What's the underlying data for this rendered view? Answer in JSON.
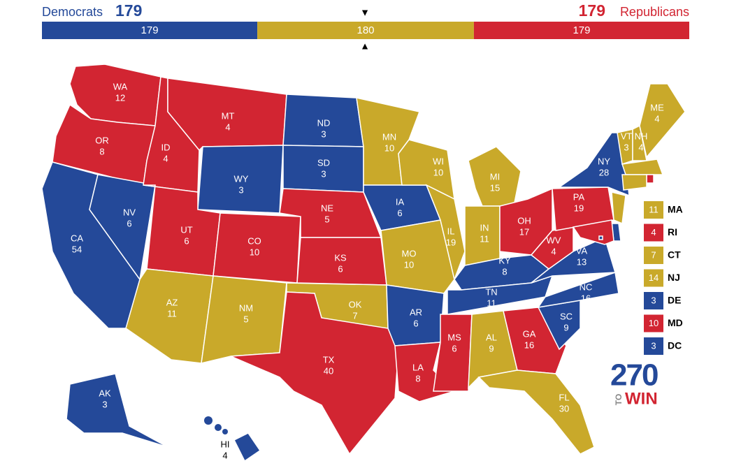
{
  "header": {
    "dem_label": "Democrats",
    "dem_total": 179,
    "rep_total": 179,
    "rep_label": "Republicans",
    "dem_color": "#244999",
    "tossup_color": "#c9a92a",
    "rep_color": "#d22532",
    "bar": [
      179,
      180,
      179
    ]
  },
  "states": [
    {
      "abbr": "WA",
      "votes": 12,
      "color": "#d22532"
    },
    {
      "abbr": "OR",
      "votes": 8,
      "color": "#d22532"
    },
    {
      "abbr": "CA",
      "votes": 54,
      "color": "#244999"
    },
    {
      "abbr": "NV",
      "votes": 6,
      "color": "#244999"
    },
    {
      "abbr": "ID",
      "votes": 4,
      "color": "#d22532"
    },
    {
      "abbr": "MT",
      "votes": 4,
      "color": "#d22532"
    },
    {
      "abbr": "WY",
      "votes": 3,
      "color": "#244999"
    },
    {
      "abbr": "UT",
      "votes": 6,
      "color": "#d22532"
    },
    {
      "abbr": "AZ",
      "votes": 11,
      "color": "#c9a92a"
    },
    {
      "abbr": "CO",
      "votes": 10,
      "color": "#d22532"
    },
    {
      "abbr": "NM",
      "votes": 5,
      "color": "#c9a92a"
    },
    {
      "abbr": "ND",
      "votes": 3,
      "color": "#244999"
    },
    {
      "abbr": "SD",
      "votes": 3,
      "color": "#244999"
    },
    {
      "abbr": "NE",
      "votes": 5,
      "color": "#d22532"
    },
    {
      "abbr": "KS",
      "votes": 6,
      "color": "#d22532"
    },
    {
      "abbr": "OK",
      "votes": 7,
      "color": "#c9a92a"
    },
    {
      "abbr": "TX",
      "votes": 40,
      "color": "#d22532"
    },
    {
      "abbr": "MN",
      "votes": 10,
      "color": "#c9a92a"
    },
    {
      "abbr": "IA",
      "votes": 6,
      "color": "#244999"
    },
    {
      "abbr": "MO",
      "votes": 10,
      "color": "#c9a92a"
    },
    {
      "abbr": "AR",
      "votes": 6,
      "color": "#244999"
    },
    {
      "abbr": "LA",
      "votes": 8,
      "color": "#d22532"
    },
    {
      "abbr": "WI",
      "votes": 10,
      "color": "#c9a92a"
    },
    {
      "abbr": "IL",
      "votes": 19,
      "color": "#c9a92a"
    },
    {
      "abbr": "MI",
      "votes": 15,
      "color": "#c9a92a"
    },
    {
      "abbr": "IN",
      "votes": 11,
      "color": "#c9a92a"
    },
    {
      "abbr": "OH",
      "votes": 17,
      "color": "#d22532"
    },
    {
      "abbr": "KY",
      "votes": 8,
      "color": "#244999"
    },
    {
      "abbr": "TN",
      "votes": 11,
      "color": "#244999"
    },
    {
      "abbr": "MS",
      "votes": 6,
      "color": "#d22532"
    },
    {
      "abbr": "AL",
      "votes": 9,
      "color": "#c9a92a"
    },
    {
      "abbr": "GA",
      "votes": 16,
      "color": "#d22532"
    },
    {
      "abbr": "FL",
      "votes": 30,
      "color": "#c9a92a"
    },
    {
      "abbr": "SC",
      "votes": 9,
      "color": "#244999"
    },
    {
      "abbr": "NC",
      "votes": 16,
      "color": "#244999"
    },
    {
      "abbr": "VA",
      "votes": 13,
      "color": "#244999"
    },
    {
      "abbr": "WV",
      "votes": 4,
      "color": "#d22532"
    },
    {
      "abbr": "PA",
      "votes": 19,
      "color": "#d22532"
    },
    {
      "abbr": "NY",
      "votes": 28,
      "color": "#244999"
    },
    {
      "abbr": "VT",
      "votes": 3,
      "color": "#c9a92a"
    },
    {
      "abbr": "NH",
      "votes": 4,
      "color": "#c9a92a"
    },
    {
      "abbr": "ME",
      "votes": 4,
      "color": "#c9a92a"
    },
    {
      "abbr": "AK",
      "votes": 3,
      "color": "#244999"
    },
    {
      "abbr": "HI",
      "votes": 4,
      "color": "#244999"
    }
  ],
  "small_states": [
    {
      "abbr": "MA",
      "votes": 11,
      "color": "#c9a92a"
    },
    {
      "abbr": "RI",
      "votes": 4,
      "color": "#d22532"
    },
    {
      "abbr": "CT",
      "votes": 7,
      "color": "#c9a92a"
    },
    {
      "abbr": "NJ",
      "votes": 14,
      "color": "#c9a92a"
    },
    {
      "abbr": "DE",
      "votes": 3,
      "color": "#244999"
    },
    {
      "abbr": "MD",
      "votes": 10,
      "color": "#d22532"
    },
    {
      "abbr": "DC",
      "votes": 3,
      "color": "#244999"
    }
  ],
  "logo": {
    "number": "270",
    "to": "TO",
    "win": "WIN"
  }
}
